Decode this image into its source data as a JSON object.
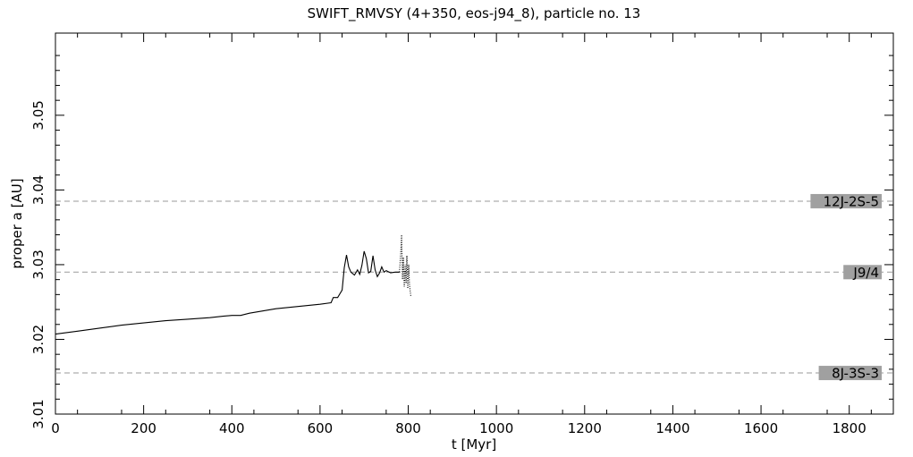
{
  "chart_data": {
    "type": "line",
    "title": "SWIFT_RMVSY (4+350, eos-j94_8), particle no. 13",
    "xlabel": "t [Myr]",
    "ylabel": "proper a [AU]",
    "xlim": [
      0,
      1900
    ],
    "ylim": [
      3.01,
      3.061
    ],
    "x_ticks": [
      "0",
      "200",
      "400",
      "600",
      "800",
      "1000",
      "1200",
      "1400",
      "1600",
      "1800"
    ],
    "x_tick_values": [
      0,
      200,
      400,
      600,
      800,
      1000,
      1200,
      1400,
      1600,
      1800
    ],
    "y_ticks": [
      "3.01",
      "3.02",
      "3.03",
      "3.04",
      "3.05"
    ],
    "y_tick_values": [
      3.01,
      3.02,
      3.03,
      3.04,
      3.05
    ],
    "grid": false,
    "resonances": [
      {
        "label": "12J-2S-5",
        "a": 3.0385
      },
      {
        "label": "J9/4",
        "a": 3.029
      },
      {
        "label": "8J-3S-3",
        "a": 3.0155
      }
    ],
    "series": [
      {
        "style": "solid",
        "x": [
          0,
          50,
          100,
          150,
          200,
          250,
          300,
          350,
          380,
          400,
          420,
          440,
          470,
          500,
          550,
          600,
          625,
          630,
          640,
          650,
          655,
          660,
          665,
          670,
          678,
          685,
          690,
          695,
          700,
          705,
          710,
          715,
          720,
          725,
          730,
          735,
          740,
          745,
          750,
          760,
          770,
          780
        ],
        "y": [
          3.0207,
          3.0211,
          3.0215,
          3.0219,
          3.0222,
          3.0225,
          3.0227,
          3.0229,
          3.0231,
          3.0232,
          3.0232,
          3.0235,
          3.0238,
          3.0241,
          3.0244,
          3.0247,
          3.0249,
          3.0256,
          3.0256,
          3.0266,
          3.0296,
          3.0313,
          3.0297,
          3.029,
          3.0286,
          3.0293,
          3.0287,
          3.0299,
          3.0318,
          3.0308,
          3.0289,
          3.0291,
          3.0312,
          3.0293,
          3.0284,
          3.0289,
          3.0297,
          3.029,
          3.0292,
          3.0289,
          3.029,
          3.029
        ]
      },
      {
        "style": "dotted",
        "x": [
          780,
          783,
          785,
          787,
          789,
          791,
          793,
          795,
          797,
          799,
          801,
          803,
          806
        ],
        "y": [
          3.029,
          3.0315,
          3.034,
          3.028,
          3.031,
          3.027,
          3.03,
          3.0275,
          3.0312,
          3.0268,
          3.03,
          3.0272,
          3.0257
        ]
      }
    ]
  }
}
